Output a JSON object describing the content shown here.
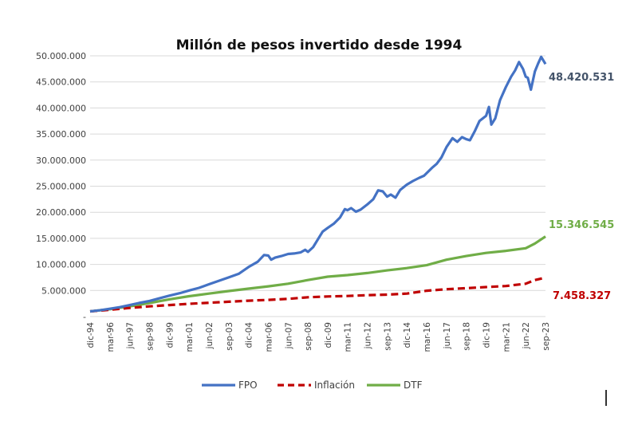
{
  "chart_data": {
    "type": "line",
    "title": "Millón de pesos invertido desde 1994",
    "xlabel": "",
    "ylabel": "",
    "ylim": [
      0,
      50000000
    ],
    "grid": true,
    "legend_position": "bottom",
    "y_ticks": [
      {
        "value": 0,
        "label": "-"
      },
      {
        "value": 5000000,
        "label": "5.000.000"
      },
      {
        "value": 10000000,
        "label": "10.000.000"
      },
      {
        "value": 15000000,
        "label": "15.000.000"
      },
      {
        "value": 20000000,
        "label": "20.000.000"
      },
      {
        "value": 25000000,
        "label": "25.000.000"
      },
      {
        "value": 30000000,
        "label": "30.000.000"
      },
      {
        "value": 35000000,
        "label": "35.000.000"
      },
      {
        "value": 40000000,
        "label": "40.000.000"
      },
      {
        "value": 45000000,
        "label": "45.000.000"
      },
      {
        "value": 50000000,
        "label": "50.000.000"
      }
    ],
    "categories": [
      "dic-94",
      "mar-96",
      "jun-97",
      "sep-98",
      "dic-99",
      "mar-01",
      "jun-02",
      "sep-03",
      "dic-04",
      "mar-06",
      "jun-07",
      "sep-08",
      "dic-09",
      "mar-11",
      "jun-12",
      "sep-13",
      "dic-14",
      "mar-16",
      "jun-17",
      "sep-18",
      "dic-19",
      "mar-21",
      "jun-22",
      "sep-23"
    ],
    "x_range_years": [
      1994.92,
      2023.67
    ],
    "series": [
      {
        "name": "FPO",
        "color": "#4472c4",
        "style": "solid",
        "end_label": "48.420.531",
        "end_label_color": "#44546a",
        "x": [
          1994.92,
          1995.5,
          1996.17,
          1996.8,
          1997.42,
          1998.0,
          1998.67,
          1999.3,
          1999.92,
          2000.6,
          2001.17,
          2001.8,
          2002.42,
          2003.0,
          2003.67,
          2004.3,
          2004.92,
          2005.5,
          2005.9,
          2006.17,
          2006.35,
          2006.6,
          2007.0,
          2007.42,
          2007.8,
          2008.2,
          2008.5,
          2008.67,
          2009.0,
          2009.3,
          2009.6,
          2009.92,
          2010.3,
          2010.7,
          2011.0,
          2011.17,
          2011.4,
          2011.7,
          2012.0,
          2012.42,
          2012.8,
          2013.1,
          2013.4,
          2013.67,
          2013.9,
          2014.2,
          2014.5,
          2014.92,
          2015.3,
          2015.7,
          2016.0,
          2016.17,
          2016.5,
          2016.8,
          2017.1,
          2017.42,
          2017.8,
          2018.1,
          2018.4,
          2018.67,
          2018.9,
          2019.2,
          2019.5,
          2019.92,
          2020.1,
          2020.25,
          2020.5,
          2020.8,
          2021.17,
          2021.5,
          2021.75,
          2022.0,
          2022.25,
          2022.42,
          2022.55,
          2022.75,
          2023.0,
          2023.2,
          2023.4,
          2023.67
        ],
        "y": [
          1000000,
          1200000,
          1500000,
          1800000,
          2200000,
          2600000,
          3000000,
          3500000,
          4000000,
          4500000,
          5000000,
          5500000,
          6200000,
          6800000,
          7500000,
          8200000,
          9500000,
          10500000,
          11800000,
          11700000,
          10900000,
          11300000,
          11600000,
          12000000,
          12100000,
          12300000,
          12800000,
          12400000,
          13300000,
          14800000,
          16300000,
          17000000,
          17800000,
          19000000,
          20600000,
          20400000,
          20800000,
          20100000,
          20500000,
          21500000,
          22500000,
          24200000,
          24000000,
          23000000,
          23400000,
          22800000,
          24300000,
          25300000,
          26000000,
          26600000,
          27000000,
          27500000,
          28500000,
          29300000,
          30500000,
          32500000,
          34200000,
          33500000,
          34400000,
          34000000,
          33800000,
          35500000,
          37500000,
          38500000,
          40200000,
          36800000,
          38000000,
          41500000,
          44000000,
          46000000,
          47200000,
          48800000,
          47500000,
          46000000,
          45800000,
          43500000,
          47000000,
          48500000,
          49800000,
          48420531
        ]
      },
      {
        "name": "Inflación",
        "color": "#c00000",
        "style": "dashed",
        "end_label": "7.458.327",
        "end_label_color": "#c00000",
        "x": [
          1994.92,
          1996.17,
          1997.42,
          1998.67,
          1999.92,
          2001.17,
          2002.42,
          2003.67,
          2004.92,
          2006.17,
          2007.42,
          2008.67,
          2009.92,
          2011.17,
          2012.42,
          2013.67,
          2014.92,
          2016.17,
          2017.42,
          2018.67,
          2019.92,
          2021.17,
          2022.42,
          2023.0,
          2023.67
        ],
        "y": [
          1000000,
          1300000,
          1650000,
          1950000,
          2200000,
          2450000,
          2650000,
          2850000,
          3050000,
          3200000,
          3400000,
          3700000,
          3850000,
          3950000,
          4100000,
          4200000,
          4400000,
          4950000,
          5250000,
          5450000,
          5650000,
          5850000,
          6300000,
          7000000,
          7458327
        ]
      },
      {
        "name": "DTF",
        "color": "#70ad47",
        "style": "solid",
        "end_label": "15.346.545",
        "end_label_color": "#70ad47",
        "x": [
          1994.92,
          1996.17,
          1997.42,
          1998.67,
          1999.92,
          2001.17,
          2002.42,
          2003.67,
          2004.92,
          2006.17,
          2007.42,
          2008.67,
          2009.92,
          2011.17,
          2012.42,
          2013.67,
          2014.92,
          2016.17,
          2017.42,
          2018.67,
          2019.92,
          2021.17,
          2022.42,
          2023.0,
          2023.67
        ],
        "y": [
          1000000,
          1400000,
          1950000,
          2600000,
          3300000,
          3900000,
          4400000,
          4900000,
          5350000,
          5800000,
          6300000,
          7000000,
          7650000,
          7950000,
          8350000,
          8850000,
          9300000,
          9850000,
          10900000,
          11600000,
          12200000,
          12600000,
          13100000,
          14000000,
          15346545
        ]
      }
    ]
  }
}
